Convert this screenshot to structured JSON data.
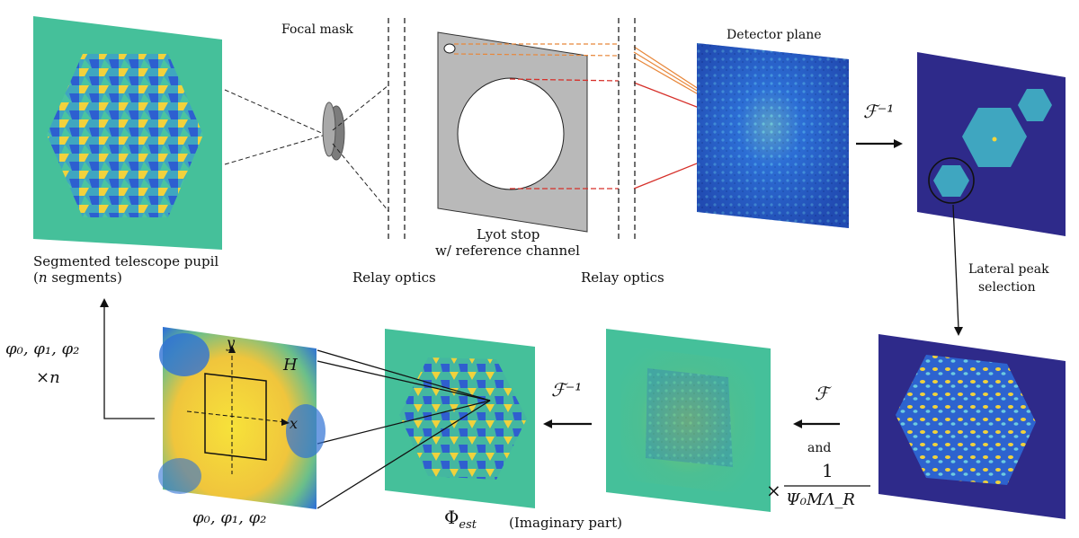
{
  "labels": {
    "segmented_pupil_line1": "Segmented telescope pupil",
    "segmented_pupil_n": "n",
    "segmented_pupil_line2": "segments)",
    "focal_mask": "Focal mask",
    "relay_optics_1": "Relay optics",
    "lyot_stop_line1": "Lyot stop",
    "lyot_stop_line2": "w/ reference channel",
    "relay_optics_2": "Relay optics",
    "detector_plane": "Detector plane",
    "lateral_peak_line1": "Lateral peak",
    "lateral_peak_line2": "selection",
    "imaginary_part": "(Imaginary part)",
    "and": "and"
  },
  "math": {
    "inv_fourier_top": "ℱ⁻¹",
    "fourier": "ℱ",
    "inv_fourier_bottom": "ℱ⁻¹",
    "multiply_factor_num": "1",
    "multiply_factor_prefix": "×",
    "multiply_factor_den": "Ψ₀MΛ_R",
    "phi_est": "Φ",
    "phi_est_sub": "est",
    "phi_params_bottom": "φ₀, φ₁, φ₂",
    "phi_params_left": "φ₀, φ₁, φ₂",
    "times_n": "×n",
    "axis_x": "x",
    "axis_y": "y",
    "h_label": "H"
  },
  "colors": {
    "teal_bg": "#45c09a",
    "dark_blue_bg": "#2e2a8a",
    "yellow": "#f5d63a",
    "blue": "#2c6fd6",
    "orange_line": "#e8873a",
    "red_line": "#d6302a",
    "grey_plate": "#b9b9b9"
  }
}
